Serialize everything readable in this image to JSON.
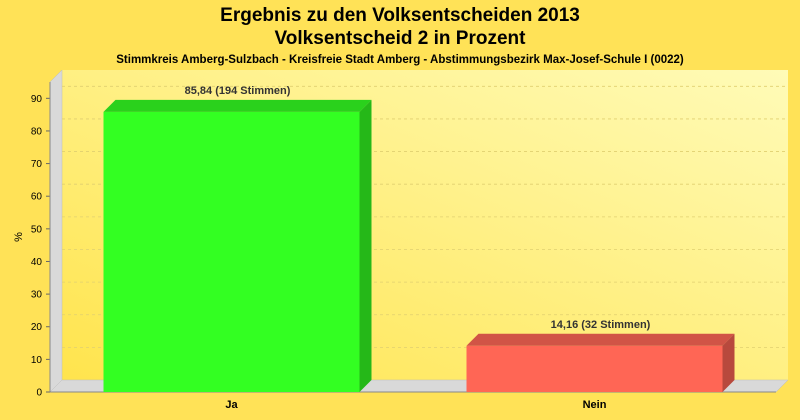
{
  "chart_data": {
    "type": "bar",
    "title": "Ergebnis zu den Volksentscheiden 2013",
    "subtitle": "Volksentscheid 2 in Prozent",
    "subsubtitle": "Stimmkreis Amberg-Sulzbach - Kreisfreie Stadt Amberg - Abstimmungsbezirk Max-Josef-Schule I (0022)",
    "ylabel": "%",
    "xlabel": "",
    "ylim": [
      0,
      95
    ],
    "yticks": [
      0,
      10,
      20,
      30,
      40,
      50,
      60,
      70,
      80,
      90
    ],
    "categories": [
      "Ja",
      "Nein"
    ],
    "values": [
      85.84,
      14.16
    ],
    "data_labels": [
      "85,84 (194 Stimmen)",
      "14,16 (32 Stimmen)"
    ],
    "colors": [
      "#33ff22",
      "#ff6655"
    ],
    "grid": true
  }
}
